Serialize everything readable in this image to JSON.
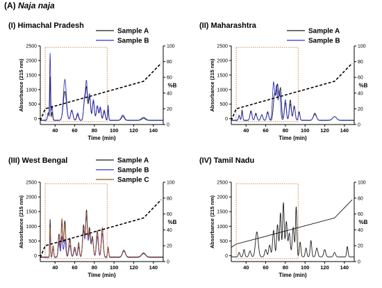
{
  "figure": {
    "label": "(A)",
    "species": "Naja naja"
  },
  "colors": {
    "sample_a": "#1a1a1a",
    "sample_b": "#3333cc",
    "sample_c": "#a0522d",
    "highlight_box": "#c47a35",
    "gradient": "#000000"
  },
  "chart_data": [
    {
      "type": "line",
      "title": "(I) Himachal Pradesh",
      "xlabel": "Time (min)",
      "ylabel": "Absorbance (215 nm)",
      "y2label": "%B",
      "xlim": [
        25,
        150
      ],
      "ylim": [
        -200,
        2500
      ],
      "y2lim": [
        0,
        100
      ],
      "xticks": [
        40,
        60,
        80,
        100,
        120,
        140
      ],
      "yticks": [
        0,
        500,
        1000,
        1500,
        2000,
        2500
      ],
      "y2ticks": [
        0,
        20,
        40,
        60,
        80,
        100
      ],
      "legend_position": "top-right",
      "highlight_box": {
        "x": [
          30,
          93
        ],
        "y": [
          -100,
          2450
        ]
      },
      "gradient": {
        "x": [
          25,
          30,
          130,
          148
        ],
        "y": [
          5,
          20,
          55,
          78
        ]
      },
      "series": [
        {
          "name": "Sample A",
          "color": "#1a1a1a",
          "baseline": -60,
          "peaks": [
            [
              33,
              260,
              0.7
            ],
            [
              35,
              1500,
              0.4
            ],
            [
              37,
              280,
              0.6
            ],
            [
              50,
              1000,
              1.6
            ],
            [
              57,
              330,
              1.2
            ],
            [
              63,
              200,
              1.0
            ],
            [
              70,
              650,
              1.0
            ],
            [
              72,
              1050,
              0.9
            ],
            [
              75,
              800,
              1.1
            ],
            [
              79,
              650,
              1.0
            ],
            [
              83,
              480,
              1.0
            ],
            [
              86,
              400,
              0.9
            ],
            [
              90,
              300,
              1.0
            ],
            [
              94,
              380,
              0.5
            ],
            [
              109,
              140,
              1.5
            ],
            [
              130,
              70,
              2.0
            ]
          ]
        },
        {
          "name": "Sample B",
          "color": "#3333cc",
          "baseline": -50,
          "peaks": [
            [
              33,
              220,
              0.7
            ],
            [
              35,
              2300,
              0.5
            ],
            [
              37,
              500,
              0.6
            ],
            [
              50,
              1400,
              1.5
            ],
            [
              57,
              350,
              1.2
            ],
            [
              63,
              250,
              1.0
            ],
            [
              70,
              700,
              1.0
            ],
            [
              72,
              1250,
              0.9
            ],
            [
              75,
              900,
              1.1
            ],
            [
              79,
              700,
              1.0
            ],
            [
              83,
              500,
              1.0
            ],
            [
              86,
              450,
              0.9
            ],
            [
              90,
              350,
              1.0
            ],
            [
              94,
              520,
              0.5
            ],
            [
              109,
              180,
              1.5
            ],
            [
              130,
              100,
              2.0
            ]
          ]
        }
      ]
    },
    {
      "type": "line",
      "title": "(II) Maharashtra",
      "xlabel": "Time (min)",
      "ylabel": "Absorbance (215 nm)",
      "y2label": "%B",
      "xlim": [
        25,
        150
      ],
      "ylim": [
        -200,
        2500
      ],
      "y2lim": [
        0,
        100
      ],
      "xticks": [
        40,
        60,
        80,
        100,
        120,
        140
      ],
      "yticks": [
        0,
        500,
        1000,
        1500,
        2000,
        2500
      ],
      "y2ticks": [
        0,
        20,
        40,
        60,
        80,
        100
      ],
      "legend_position": "top-right",
      "highlight_box": {
        "x": [
          30,
          93
        ],
        "y": [
          -100,
          2450
        ]
      },
      "gradient": {
        "x": [
          25,
          30,
          130,
          148
        ],
        "y": [
          5,
          20,
          55,
          78
        ]
      },
      "series": [
        {
          "name": "Sample A",
          "color": "#1a1a1a",
          "baseline": -60,
          "peaks": [
            [
              33,
              180,
              0.7
            ],
            [
              36,
              350,
              0.6
            ],
            [
              45,
              330,
              1.0
            ],
            [
              50,
              250,
              1.0
            ],
            [
              56,
              200,
              1.0
            ],
            [
              62,
              300,
              1.0
            ],
            [
              69,
              900,
              1.2
            ],
            [
              72,
              1200,
              1.1
            ],
            [
              75,
              1100,
              1.0
            ],
            [
              80,
              600,
              1.0
            ],
            [
              85,
              700,
              1.0
            ],
            [
              89,
              500,
              1.0
            ],
            [
              94,
              300,
              0.8
            ],
            [
              110,
              250,
              1.5
            ],
            [
              130,
              130,
              2.0
            ]
          ]
        },
        {
          "name": "Sample B",
          "color": "#3333cc",
          "baseline": -50,
          "peaks": [
            [
              33,
              150,
              0.7
            ],
            [
              36,
              280,
              0.6
            ],
            [
              45,
              280,
              1.0
            ],
            [
              50,
              200,
              1.0
            ],
            [
              56,
              180,
              1.0
            ],
            [
              62,
              250,
              1.0
            ],
            [
              68,
              1300,
              1.1
            ],
            [
              71,
              1150,
              1.0
            ],
            [
              74,
              1000,
              1.0
            ],
            [
              80,
              700,
              1.0
            ],
            [
              85,
              550,
              1.0
            ],
            [
              89,
              450,
              1.0
            ],
            [
              94,
              250,
              0.8
            ],
            [
              110,
              200,
              1.5
            ],
            [
              130,
              120,
              2.0
            ]
          ]
        }
      ]
    },
    {
      "type": "line",
      "title": "(III) West Bengal",
      "xlabel": "Time (min)",
      "ylabel": "Absorbance (215 nm)",
      "y2label": "%B",
      "xlim": [
        25,
        150
      ],
      "ylim": [
        -200,
        2500
      ],
      "y2lim": [
        0,
        100
      ],
      "xticks": [
        40,
        60,
        80,
        100,
        120,
        140
      ],
      "yticks": [
        0,
        500,
        1000,
        1500,
        2000,
        2500
      ],
      "y2ticks": [
        0,
        20,
        40,
        60,
        80,
        100
      ],
      "legend_position": "top-right",
      "highlight_box": {
        "x": [
          30,
          93
        ],
        "y": [
          -100,
          2450
        ]
      },
      "gradient": {
        "x": [
          25,
          30,
          130,
          148
        ],
        "y": [
          5,
          20,
          55,
          78
        ]
      },
      "series": [
        {
          "name": "Sample A",
          "color": "#1a1a1a",
          "baseline": -60,
          "peaks": [
            [
              35,
              1300,
              0.4
            ],
            [
              38,
              400,
              0.6
            ],
            [
              44,
              800,
              0.8
            ],
            [
              47,
              1200,
              0.8
            ],
            [
              50,
              1250,
              0.9
            ],
            [
              55,
              650,
              1.0
            ],
            [
              60,
              350,
              1.0
            ],
            [
              64,
              500,
              0.8
            ],
            [
              69,
              1100,
              1.0
            ],
            [
              72,
              1600,
              0.9
            ],
            [
              75,
              1000,
              1.0
            ],
            [
              78,
              700,
              1.0
            ],
            [
              83,
              900,
              1.0
            ],
            [
              88,
              1000,
              1.0
            ],
            [
              94,
              350,
              0.6
            ],
            [
              110,
              250,
              1.5
            ],
            [
              130,
              150,
              2.0
            ]
          ]
        },
        {
          "name": "Sample B",
          "color": "#3333cc",
          "baseline": -50,
          "peaks": [
            [
              35,
              800,
              0.4
            ],
            [
              38,
              300,
              0.6
            ],
            [
              44,
              500,
              0.8
            ],
            [
              47,
              700,
              0.8
            ],
            [
              50,
              600,
              0.9
            ],
            [
              55,
              400,
              1.0
            ],
            [
              60,
              250,
              1.0
            ],
            [
              64,
              350,
              0.8
            ],
            [
              69,
              900,
              1.0
            ],
            [
              72,
              1400,
              0.9
            ],
            [
              75,
              800,
              1.0
            ],
            [
              78,
              600,
              1.0
            ],
            [
              83,
              700,
              1.0
            ],
            [
              88,
              800,
              1.0
            ],
            [
              94,
              300,
              0.6
            ],
            [
              110,
              200,
              1.5
            ],
            [
              130,
              120,
              2.0
            ]
          ]
        },
        {
          "name": "Sample C",
          "color": "#a0522d",
          "baseline": -40,
          "peaks": [
            [
              35,
              1000,
              0.4
            ],
            [
              38,
              350,
              0.6
            ],
            [
              44,
              700,
              0.8
            ],
            [
              47,
              1300,
              0.8
            ],
            [
              50,
              1100,
              0.9
            ],
            [
              55,
              550,
              1.0
            ],
            [
              60,
              300,
              1.0
            ],
            [
              64,
              450,
              0.8
            ],
            [
              69,
              1000,
              1.0
            ],
            [
              72,
              1500,
              0.9
            ],
            [
              75,
              900,
              1.0
            ],
            [
              78,
              650,
              1.0
            ],
            [
              83,
              850,
              1.0
            ],
            [
              88,
              950,
              1.0
            ],
            [
              94,
              320,
              0.6
            ],
            [
              110,
              230,
              1.5
            ],
            [
              130,
              140,
              2.0
            ]
          ]
        }
      ]
    },
    {
      "type": "line",
      "title": "(IV) Tamil Nadu",
      "xlabel": "Time (min)",
      "ylabel": "Absorbance (215 nm)",
      "y2label": "%B",
      "xlim": [
        25,
        150
      ],
      "ylim": [
        -200,
        2500
      ],
      "y2lim": [
        0,
        100
      ],
      "xticks": [
        40,
        60,
        80,
        100,
        120,
        140
      ],
      "yticks": [
        0,
        500,
        1000,
        1500,
        2000,
        2500
      ],
      "y2ticks": [
        0,
        20,
        40,
        60,
        80,
        100
      ],
      "highlight_box": {
        "x": [
          30,
          93
        ],
        "y": [
          -100,
          2450
        ]
      },
      "gradient": {
        "x": [
          25,
          30,
          130,
          148
        ],
        "y": [
          18,
          22,
          55,
          78
        ]
      },
      "series": [
        {
          "color": "#1a1a1a",
          "baseline": -40,
          "peaks": [
            [
              33,
              150,
              0.8
            ],
            [
              38,
              250,
              0.8
            ],
            [
              44,
              200,
              1.0
            ],
            [
              51,
              850,
              1.4
            ],
            [
              60,
              250,
              1.0
            ],
            [
              64,
              400,
              1.0
            ],
            [
              68,
              900,
              1.0
            ],
            [
              72,
              1100,
              0.9
            ],
            [
              75,
              1500,
              0.8
            ],
            [
              78,
              1850,
              0.8
            ],
            [
              81,
              1200,
              0.9
            ],
            [
              84,
              800,
              1.0
            ],
            [
              88,
              1000,
              1.0
            ],
            [
              91,
              1700,
              0.7
            ],
            [
              95,
              500,
              0.8
            ],
            [
              101,
              300,
              0.8
            ],
            [
              106,
              550,
              0.8
            ],
            [
              112,
              300,
              1.0
            ],
            [
              120,
              250,
              1.0
            ],
            [
              130,
              150,
              1.0
            ],
            [
              143,
              350,
              0.7
            ]
          ]
        }
      ]
    }
  ]
}
